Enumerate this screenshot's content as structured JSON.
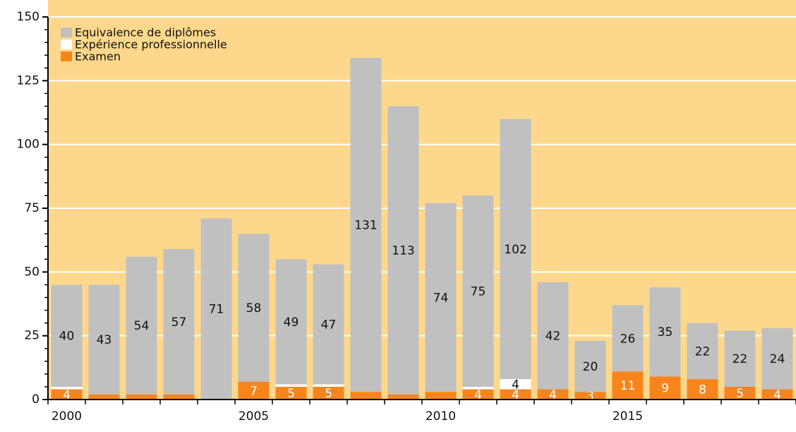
{
  "chart_data": {
    "type": "stacked_bar",
    "categories": [
      "2000",
      null,
      null,
      null,
      null,
      "2005",
      null,
      null,
      null,
      null,
      "2010",
      null,
      null,
      null,
      null,
      "2015",
      null,
      null,
      null,
      null
    ],
    "series": [
      {
        "name": "Equivalence de diplômes",
        "color": "#c0c0c0",
        "values": [
          40,
          43,
          54,
          57,
          71,
          58,
          49,
          47,
          131,
          113,
          74,
          75,
          102,
          42,
          20,
          26,
          35,
          22,
          22,
          24
        ],
        "value_labels": [
          "40",
          "43",
          "54",
          "57",
          "71",
          "58",
          "49",
          "47",
          "131",
          "113",
          "74",
          "75",
          "102",
          "42",
          "20",
          "26",
          "35",
          "22",
          "22",
          "24"
        ]
      },
      {
        "name": "Expérience professionnelle",
        "color": "#ffffff",
        "values": [
          1,
          0,
          0,
          0,
          0,
          0,
          1,
          1,
          0,
          0,
          0,
          1,
          4,
          0,
          0,
          0,
          0,
          0,
          0,
          0
        ],
        "value_labels": [
          null,
          null,
          null,
          null,
          null,
          null,
          null,
          null,
          null,
          null,
          null,
          null,
          "4",
          null,
          null,
          null,
          null,
          null,
          null,
          null
        ]
      },
      {
        "name": "Examen",
        "color": "#f7851c",
        "values": [
          4,
          2,
          2,
          2,
          0,
          7,
          5,
          5,
          3,
          2,
          3,
          4,
          4,
          4,
          3,
          11,
          9,
          8,
          5,
          4
        ],
        "value_labels": [
          "4",
          null,
          null,
          null,
          null,
          "7",
          "5",
          "5",
          null,
          null,
          null,
          "4",
          "4",
          "4",
          "3",
          "11",
          "9",
          "8",
          "5",
          "4"
        ]
      }
    ],
    "ylim": [
      0,
      150
    ],
    "yticks": [
      0,
      25,
      50,
      75,
      100,
      125,
      150
    ],
    "grid": true,
    "legend": "top-left",
    "background": "#fdd88c"
  }
}
